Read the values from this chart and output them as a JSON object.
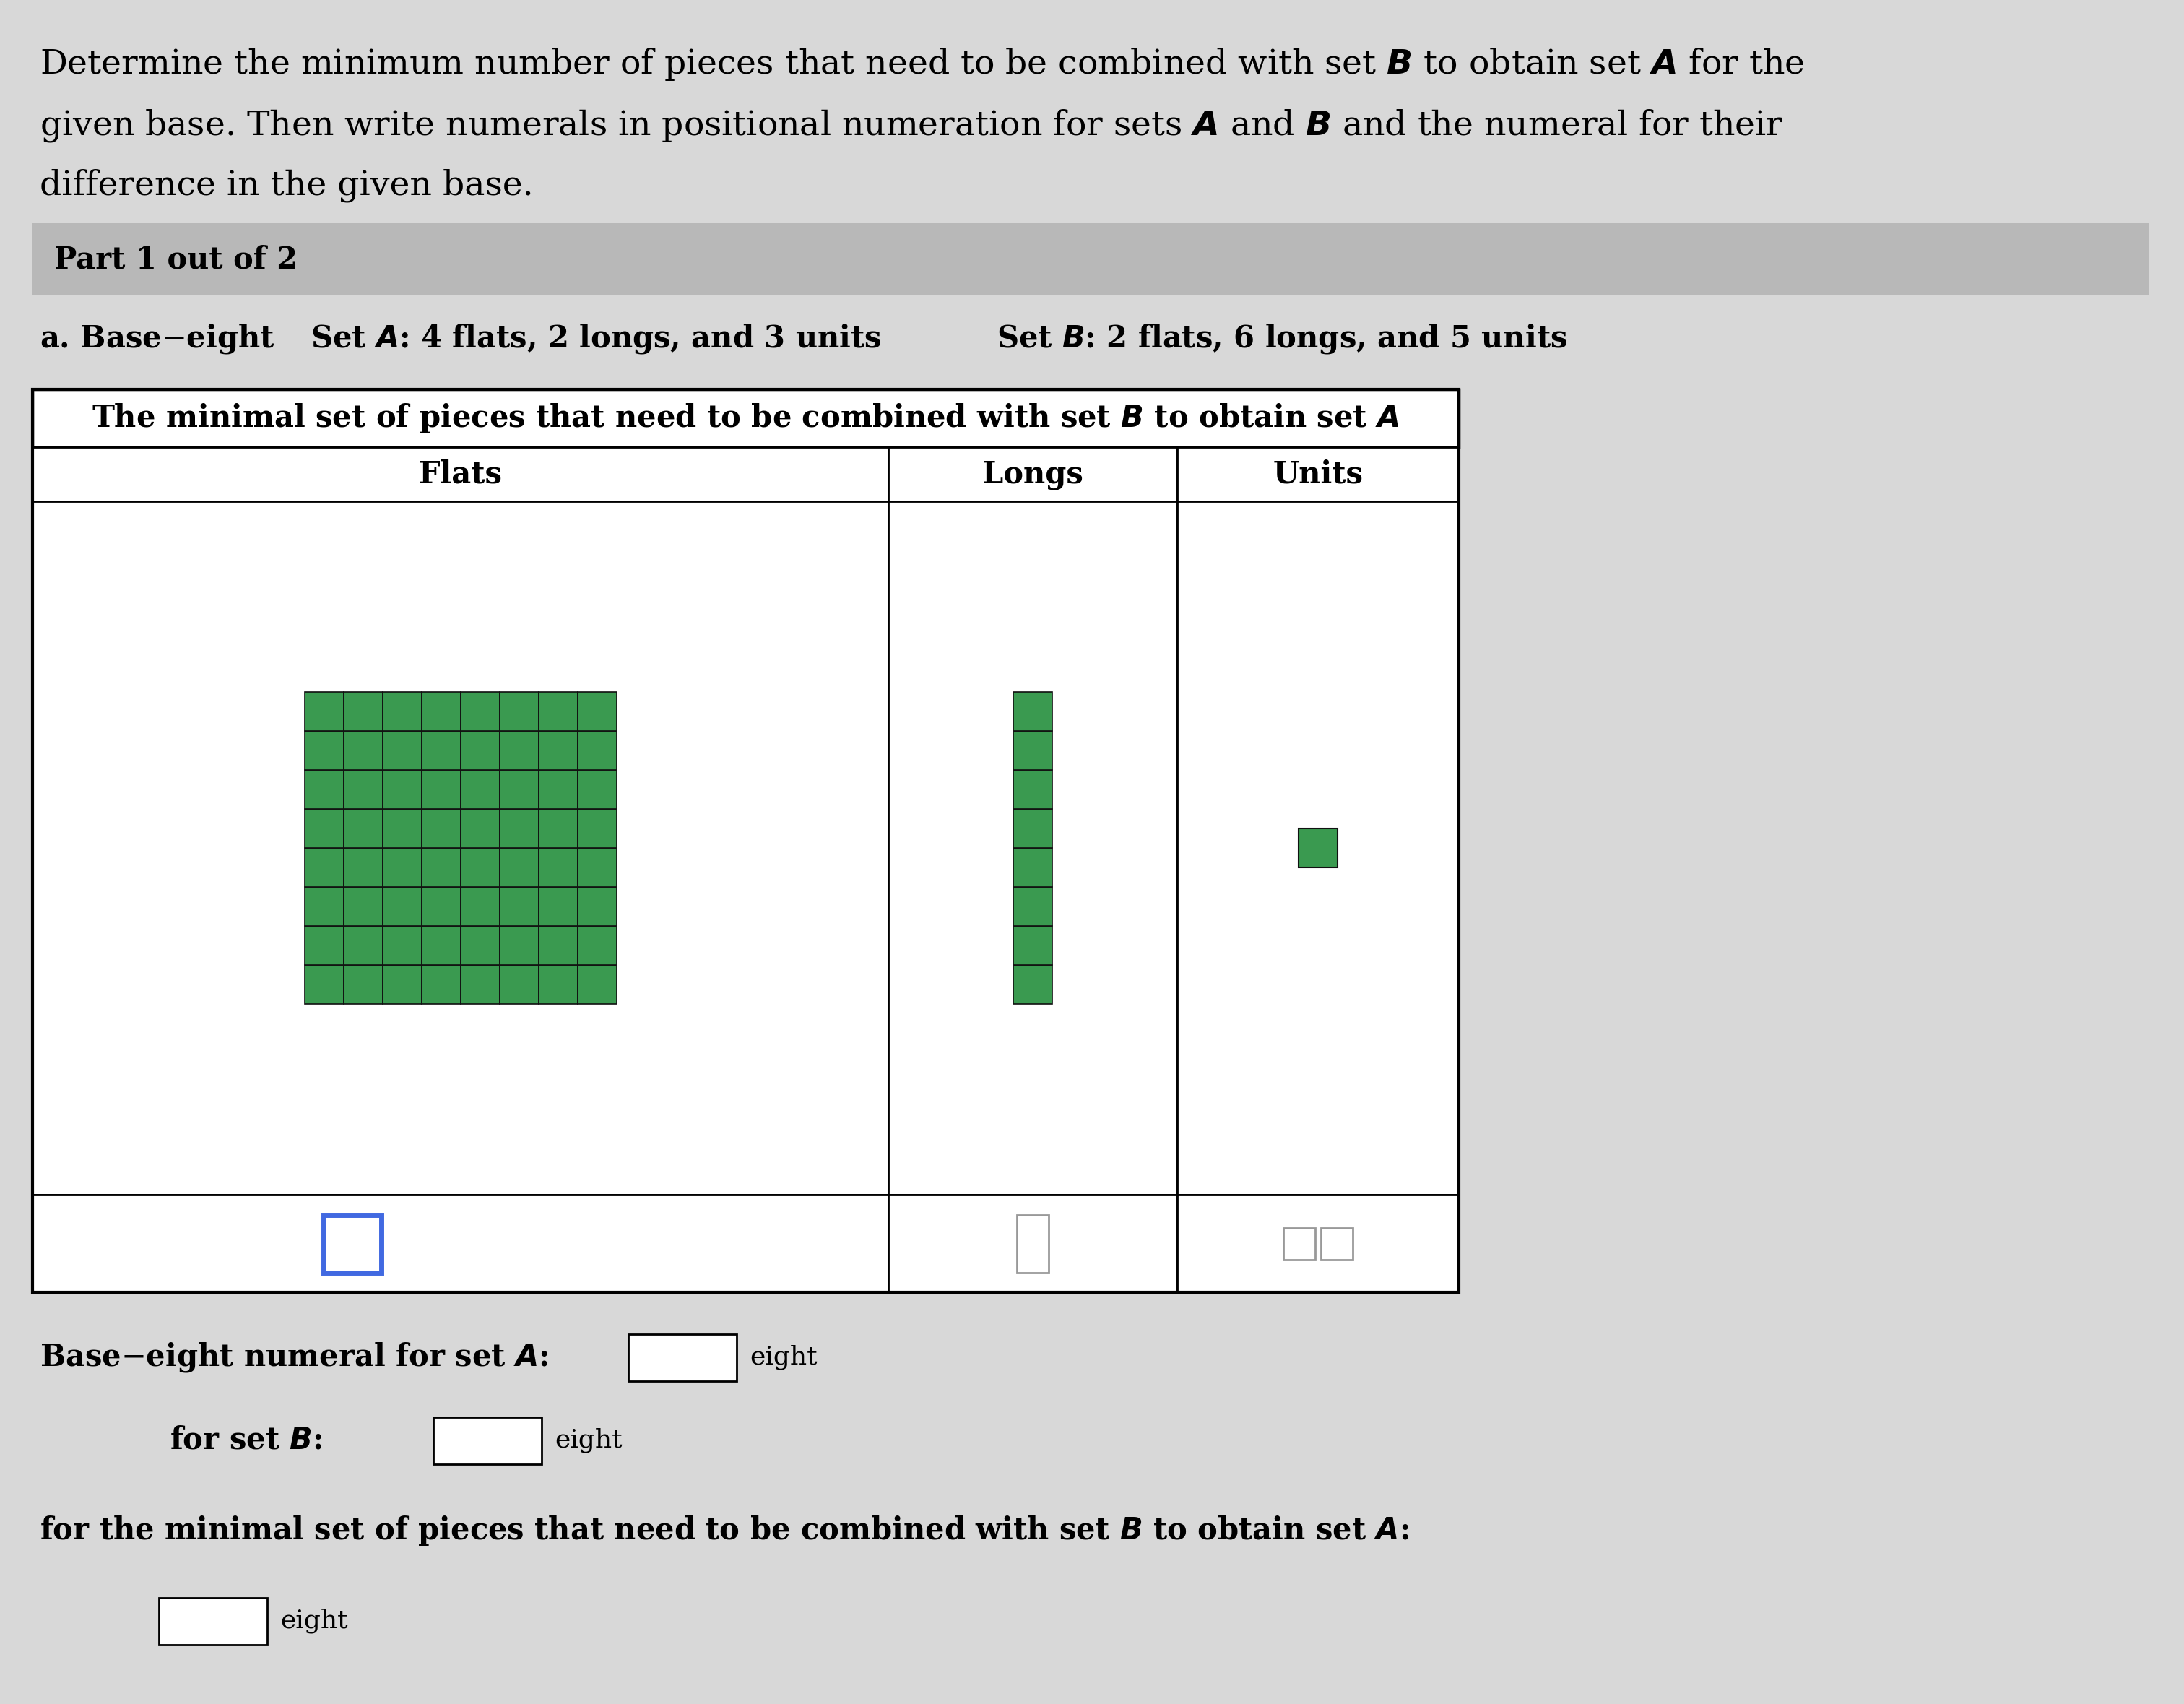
{
  "bg_color": "#d8d8d8",
  "white": "#ffffff",
  "green_fill": "#3a9a50",
  "green_line": "#1a5c33",
  "blue_outline": "#4169e1",
  "gray_header": "#b0b0b0",
  "cell_bg": "#dce8f0",
  "ans_bg": "#dce8f0",
  "part_text": "Part 1 out of 2",
  "col_flats": "Flats",
  "col_longs": "Longs",
  "col_units": "Units",
  "eight_label": "eight",
  "flat_grid_n": 8,
  "long_grid_n": 8
}
